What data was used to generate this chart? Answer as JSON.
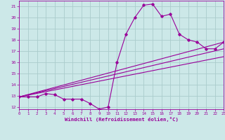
{
  "xlabel": "Windchill (Refroidissement éolien,°C)",
  "bg_color": "#cce8e8",
  "line_color": "#990099",
  "grid_color": "#aacccc",
  "series1_x": [
    0,
    1,
    2,
    3,
    4,
    5,
    6,
    7,
    8,
    9,
    10,
    11,
    12,
    13,
    14,
    15,
    16,
    17,
    18,
    19,
    20,
    21,
    22,
    23
  ],
  "series1_y": [
    12.9,
    12.9,
    12.9,
    13.2,
    13.1,
    12.7,
    12.7,
    12.7,
    12.3,
    11.8,
    12.0,
    16.0,
    18.5,
    20.0,
    21.1,
    21.2,
    20.1,
    20.3,
    18.5,
    18.0,
    17.8,
    17.2,
    17.2,
    17.8
  ],
  "series2_x": [
    0,
    23
  ],
  "series2_y": [
    12.9,
    17.8
  ],
  "series3_x": [
    0,
    23
  ],
  "series3_y": [
    12.9,
    17.2
  ],
  "series4_x": [
    0,
    23
  ],
  "series4_y": [
    12.9,
    16.5
  ],
  "xlim": [
    0,
    23
  ],
  "ylim": [
    11.8,
    21.5
  ],
  "xticks": [
    0,
    1,
    2,
    3,
    4,
    5,
    6,
    7,
    8,
    9,
    10,
    11,
    12,
    13,
    14,
    15,
    16,
    17,
    18,
    19,
    20,
    21,
    22,
    23
  ],
  "yticks": [
    12,
    13,
    14,
    15,
    16,
    17,
    18,
    19,
    20,
    21
  ]
}
